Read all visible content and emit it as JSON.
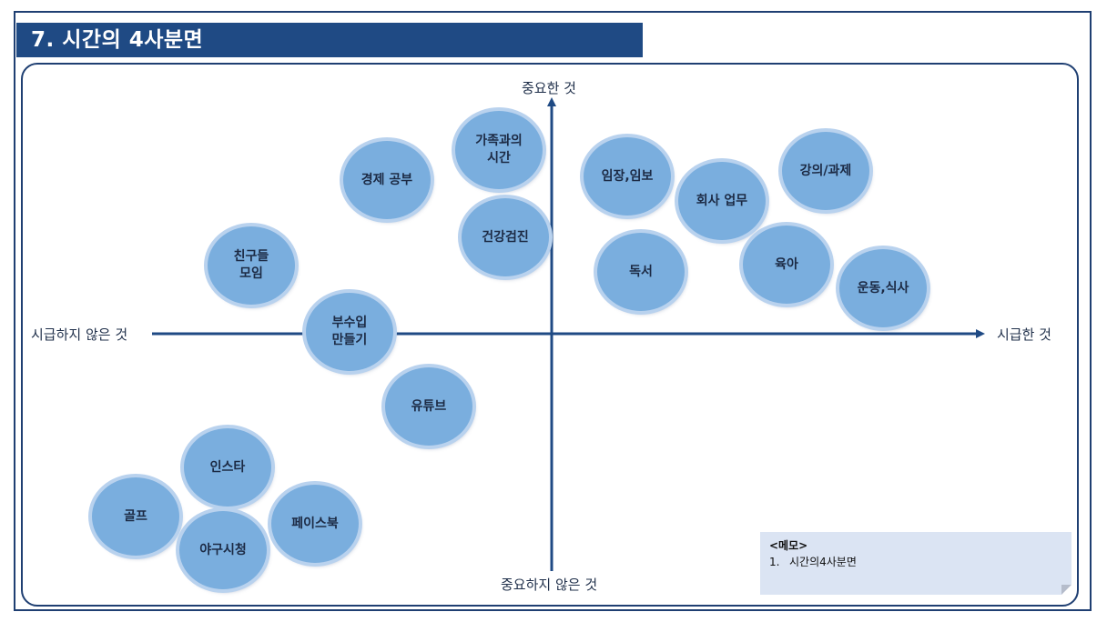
{
  "title": "7. 시간의 4사분면",
  "axes": {
    "top": "중요한 것",
    "bottom": "중요하지 않은 것",
    "left": "시급하지 않은 것",
    "right": "시급한 것"
  },
  "bubbles": {
    "gajok": "가족과의\n시간",
    "gyeongje": "경제 공부",
    "geongang": "건강검진",
    "chingu": "친구들\n모임",
    "busuip": "부수입\n만들기",
    "youtube": "유튜브",
    "insta": "인스타",
    "golf": "골프",
    "facebook": "페이스북",
    "baseball": "야구시청",
    "imjang": "임장,임보",
    "company": "회사 업무",
    "lecture": "강의/과제",
    "reading": "독서",
    "parenting": "육아",
    "exercise": "운동,식사"
  },
  "memo": {
    "title": "<메모>",
    "item_num": "1.",
    "item_text": "시간의4사분면"
  },
  "colors": {
    "title_bg": "#1f4a84",
    "axis": "#1f4a84",
    "bubble_fill": "#7aaede",
    "memo_bg": "#dbe4f3"
  }
}
